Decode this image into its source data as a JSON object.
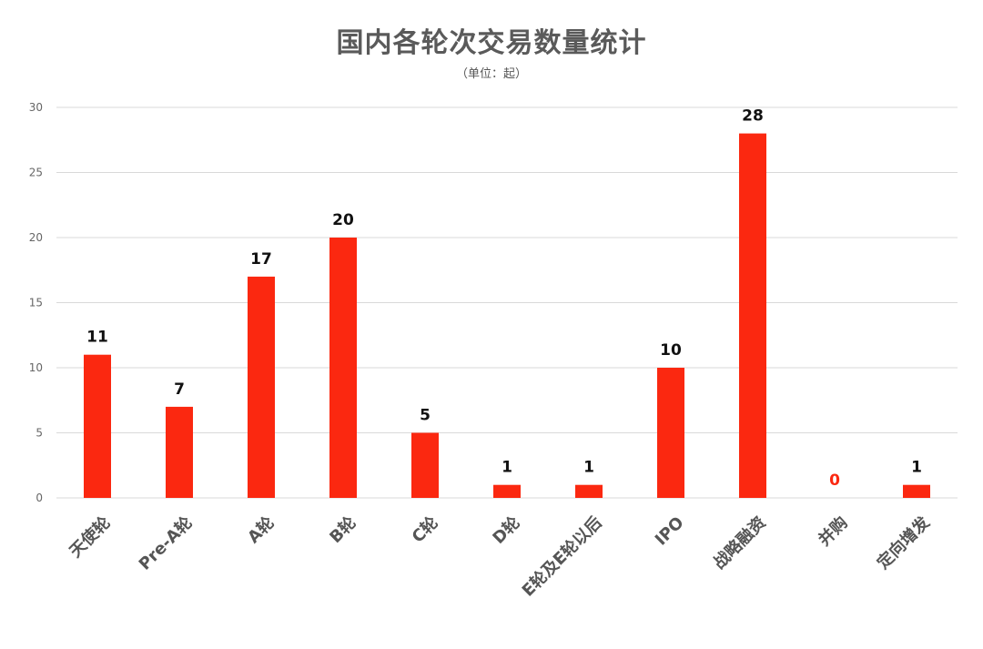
{
  "chart_data": {
    "type": "bar",
    "title": "国内各轮次交易数量统计",
    "subtitle": "（单位：起）",
    "categories": [
      "天使轮",
      "Pre-A轮",
      "A轮",
      "B轮",
      "C轮",
      "D轮",
      "E轮及E轮以后",
      "IPO",
      "战略融资",
      "并购",
      "定向增发"
    ],
    "values": [
      11,
      7,
      17,
      20,
      5,
      1,
      1,
      10,
      28,
      0,
      1
    ],
    "data_labels": [
      "11",
      "7",
      "17",
      "20",
      "5",
      "1",
      "1",
      "10",
      "28",
      "0",
      "1"
    ],
    "yticks": [
      "0",
      "5",
      "10",
      "15",
      "20",
      "25",
      "30"
    ],
    "ylim": [
      0,
      30
    ],
    "grid": true,
    "legend": "none"
  },
  "colors": {
    "bar": "#fb2810",
    "label": "#111111",
    "zero_label": "#fb2810",
    "grid": "#d9d9d9",
    "title": "#5a5a5a"
  }
}
